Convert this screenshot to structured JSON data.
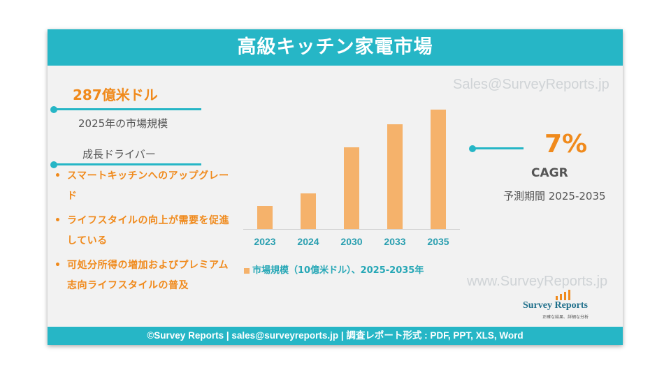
{
  "title": "高級キッチン家電市場",
  "watermark_top": "Sales@SurveyReports.jp",
  "watermark_bottom": "www.SurveyReports.jp",
  "market_size": {
    "value": "287億米ドル",
    "label": "2025年の市場規模"
  },
  "drivers": {
    "heading": "成長ドライバー",
    "items": [
      "スマートキッチンへのアップグレード",
      "ライフスタイルの向上が需要を促進している",
      "可処分所得の増加およびプレミアム志向ライフスタイルの普及"
    ]
  },
  "cagr": {
    "value": "7%",
    "label": "CAGR",
    "period": "予測期間 2025-2035"
  },
  "chart_data": {
    "type": "bar",
    "categories": [
      "2023",
      "2024",
      "2030",
      "2033",
      "2035"
    ],
    "values": [
      11,
      17,
      39,
      50,
      57
    ],
    "legend": "市場規模（10億米ドル）、2025-2035年",
    "ylim": [
      0,
      60
    ],
    "grid": false,
    "bar_color": "#f5b26b"
  },
  "logo": {
    "name": "Survey Reports",
    "tagline": "正確な結果、詳細な分析"
  },
  "footer": "©Survey Reports | sales@surveyreports.jp | 調査レポート形式 : PDF, PPT, XLS, Word",
  "colors": {
    "teal": "#26b6c6",
    "orange": "#f08a1c",
    "bar": "#f5b26b"
  }
}
